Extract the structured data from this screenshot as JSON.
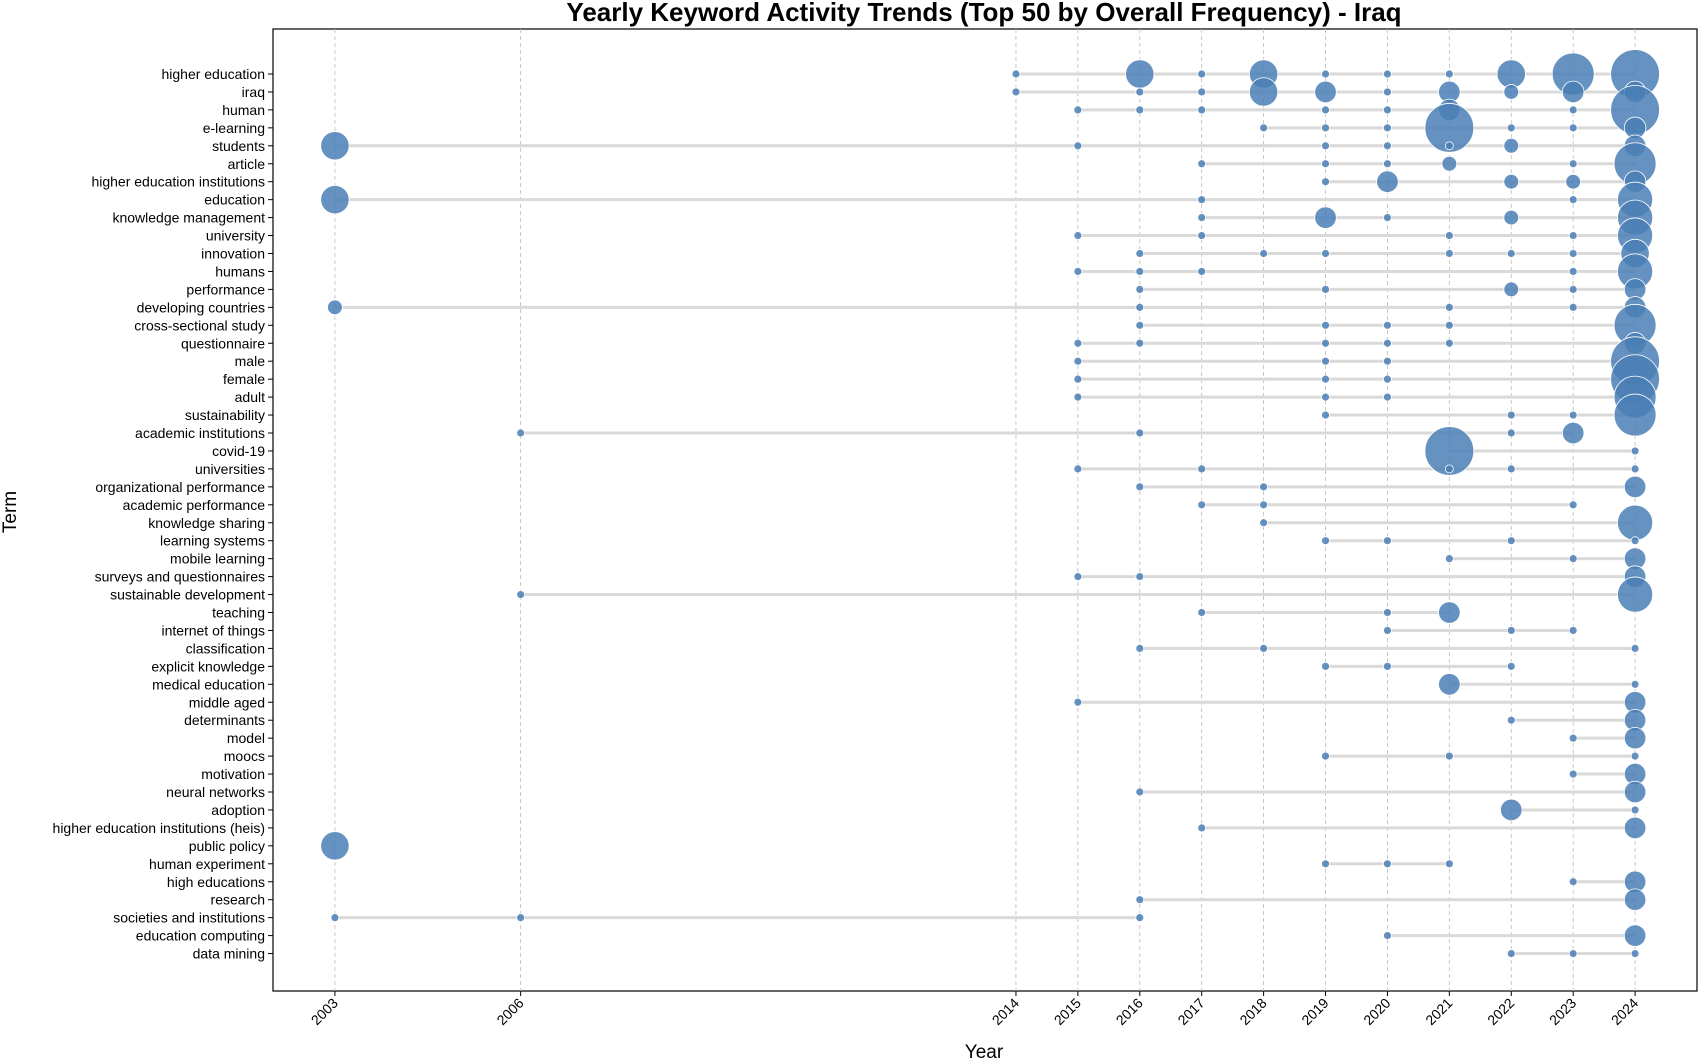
{
  "chart_data": {
    "type": "scatter",
    "title": "Yearly Keyword Activity Trends (Top 50 by Overall Frequency) - Iraq",
    "xlabel": "Year",
    "ylabel": "Term",
    "x_ticks": [
      2003,
      2006,
      2014,
      2015,
      2016,
      2017,
      2018,
      2019,
      2020,
      2021,
      2022,
      2023,
      2024
    ],
    "xlim": [
      2002,
      2025
    ],
    "grid": "vertical dashed",
    "colors": {
      "marker": "#4a7fb5",
      "line": "#d9d9d9",
      "grid": "#bbbbbb"
    },
    "terms": [
      {
        "term": "higher education",
        "points": [
          [
            2014,
            1
          ],
          [
            2016,
            4
          ],
          [
            2017,
            1
          ],
          [
            2018,
            4
          ],
          [
            2019,
            1
          ],
          [
            2020,
            1
          ],
          [
            2021,
            1
          ],
          [
            2022,
            4
          ],
          [
            2023,
            6
          ],
          [
            2024,
            7
          ]
        ]
      },
      {
        "term": "iraq",
        "points": [
          [
            2014,
            1
          ],
          [
            2016,
            1
          ],
          [
            2017,
            1
          ],
          [
            2018,
            4
          ],
          [
            2019,
            3
          ],
          [
            2020,
            1
          ],
          [
            2021,
            3
          ],
          [
            2022,
            2
          ],
          [
            2023,
            3
          ],
          [
            2024,
            3
          ]
        ]
      },
      {
        "term": "human",
        "points": [
          [
            2015,
            1
          ],
          [
            2016,
            1
          ],
          [
            2017,
            1
          ],
          [
            2019,
            1
          ],
          [
            2020,
            1
          ],
          [
            2021,
            3
          ],
          [
            2023,
            1
          ],
          [
            2024,
            7
          ]
        ]
      },
      {
        "term": "e-learning",
        "points": [
          [
            2018,
            1
          ],
          [
            2019,
            1
          ],
          [
            2020,
            1
          ],
          [
            2021,
            7
          ],
          [
            2022,
            1
          ],
          [
            2023,
            1
          ],
          [
            2024,
            3
          ]
        ]
      },
      {
        "term": "students",
        "points": [
          [
            2003,
            4
          ],
          [
            2015,
            1
          ],
          [
            2019,
            1
          ],
          [
            2020,
            1
          ],
          [
            2021,
            1
          ],
          [
            2022,
            2
          ],
          [
            2024,
            3
          ]
        ]
      },
      {
        "term": "article",
        "points": [
          [
            2017,
            1
          ],
          [
            2019,
            1
          ],
          [
            2020,
            1
          ],
          [
            2021,
            2
          ],
          [
            2023,
            1
          ],
          [
            2024,
            6
          ]
        ]
      },
      {
        "term": "higher education institutions",
        "points": [
          [
            2019,
            1
          ],
          [
            2020,
            3
          ],
          [
            2022,
            2
          ],
          [
            2023,
            2
          ],
          [
            2024,
            3
          ]
        ]
      },
      {
        "term": "education",
        "points": [
          [
            2003,
            4
          ],
          [
            2017,
            1
          ],
          [
            2023,
            1
          ],
          [
            2024,
            5
          ]
        ]
      },
      {
        "term": "knowledge management",
        "points": [
          [
            2017,
            1
          ],
          [
            2019,
            3
          ],
          [
            2020,
            1
          ],
          [
            2022,
            2
          ],
          [
            2024,
            5
          ]
        ]
      },
      {
        "term": "university",
        "points": [
          [
            2015,
            1
          ],
          [
            2017,
            1
          ],
          [
            2021,
            1
          ],
          [
            2023,
            1
          ],
          [
            2024,
            5
          ]
        ]
      },
      {
        "term": "innovation",
        "points": [
          [
            2016,
            1
          ],
          [
            2018,
            1
          ],
          [
            2019,
            1
          ],
          [
            2021,
            1
          ],
          [
            2022,
            1
          ],
          [
            2023,
            1
          ],
          [
            2024,
            4
          ]
        ]
      },
      {
        "term": "humans",
        "points": [
          [
            2015,
            1
          ],
          [
            2016,
            1
          ],
          [
            2017,
            1
          ],
          [
            2023,
            1
          ],
          [
            2024,
            5
          ]
        ]
      },
      {
        "term": "performance",
        "points": [
          [
            2016,
            1
          ],
          [
            2019,
            1
          ],
          [
            2022,
            2
          ],
          [
            2023,
            1
          ],
          [
            2024,
            3
          ]
        ]
      },
      {
        "term": "developing countries",
        "points": [
          [
            2003,
            2
          ],
          [
            2016,
            1
          ],
          [
            2021,
            1
          ],
          [
            2023,
            1
          ],
          [
            2024,
            3
          ]
        ]
      },
      {
        "term": "cross-sectional study",
        "points": [
          [
            2016,
            1
          ],
          [
            2019,
            1
          ],
          [
            2020,
            1
          ],
          [
            2021,
            1
          ],
          [
            2024,
            6
          ]
        ]
      },
      {
        "term": "questionnaire",
        "points": [
          [
            2015,
            1
          ],
          [
            2016,
            1
          ],
          [
            2019,
            1
          ],
          [
            2020,
            1
          ],
          [
            2021,
            1
          ],
          [
            2024,
            3
          ]
        ]
      },
      {
        "term": "male",
        "points": [
          [
            2015,
            1
          ],
          [
            2019,
            1
          ],
          [
            2020,
            1
          ],
          [
            2024,
            7
          ]
        ]
      },
      {
        "term": "female",
        "points": [
          [
            2015,
            1
          ],
          [
            2019,
            1
          ],
          [
            2020,
            1
          ],
          [
            2024,
            7
          ]
        ]
      },
      {
        "term": "adult",
        "points": [
          [
            2015,
            1
          ],
          [
            2019,
            1
          ],
          [
            2020,
            1
          ],
          [
            2024,
            6
          ]
        ]
      },
      {
        "term": "sustainability",
        "points": [
          [
            2019,
            1
          ],
          [
            2022,
            1
          ],
          [
            2023,
            1
          ],
          [
            2024,
            6
          ]
        ]
      },
      {
        "term": "academic institutions",
        "points": [
          [
            2006,
            1
          ],
          [
            2016,
            1
          ],
          [
            2022,
            1
          ],
          [
            2023,
            3
          ]
        ]
      },
      {
        "term": "covid-19",
        "points": [
          [
            2021,
            7
          ],
          [
            2024,
            1
          ]
        ]
      },
      {
        "term": "universities",
        "points": [
          [
            2015,
            1
          ],
          [
            2017,
            1
          ],
          [
            2021,
            1
          ],
          [
            2022,
            1
          ],
          [
            2024,
            1
          ]
        ]
      },
      {
        "term": "organizational performance",
        "points": [
          [
            2016,
            1
          ],
          [
            2018,
            1
          ],
          [
            2024,
            3
          ]
        ]
      },
      {
        "term": "academic performance",
        "points": [
          [
            2017,
            1
          ],
          [
            2018,
            1
          ],
          [
            2023,
            1
          ]
        ]
      },
      {
        "term": "knowledge sharing",
        "points": [
          [
            2018,
            1
          ],
          [
            2024,
            5
          ]
        ]
      },
      {
        "term": "learning systems",
        "points": [
          [
            2019,
            1
          ],
          [
            2020,
            1
          ],
          [
            2022,
            1
          ],
          [
            2024,
            1
          ]
        ]
      },
      {
        "term": "mobile learning",
        "points": [
          [
            2021,
            1
          ],
          [
            2023,
            1
          ],
          [
            2024,
            3
          ]
        ]
      },
      {
        "term": "surveys and questionnaires",
        "points": [
          [
            2015,
            1
          ],
          [
            2016,
            1
          ],
          [
            2024,
            3
          ]
        ]
      },
      {
        "term": "sustainable development",
        "points": [
          [
            2006,
            1
          ],
          [
            2024,
            5
          ]
        ]
      },
      {
        "term": "teaching",
        "points": [
          [
            2017,
            1
          ],
          [
            2020,
            1
          ],
          [
            2021,
            3
          ]
        ]
      },
      {
        "term": "internet of things",
        "points": [
          [
            2020,
            1
          ],
          [
            2022,
            1
          ],
          [
            2023,
            1
          ]
        ]
      },
      {
        "term": "classification",
        "points": [
          [
            2016,
            1
          ],
          [
            2018,
            1
          ],
          [
            2024,
            1
          ]
        ]
      },
      {
        "term": "explicit knowledge",
        "points": [
          [
            2019,
            1
          ],
          [
            2020,
            1
          ],
          [
            2022,
            1
          ]
        ]
      },
      {
        "term": "medical education",
        "points": [
          [
            2021,
            3
          ],
          [
            2024,
            1
          ]
        ]
      },
      {
        "term": "middle aged",
        "points": [
          [
            2015,
            1
          ],
          [
            2024,
            3
          ]
        ]
      },
      {
        "term": "determinants",
        "points": [
          [
            2022,
            1
          ],
          [
            2024,
            3
          ]
        ]
      },
      {
        "term": "model",
        "points": [
          [
            2023,
            1
          ],
          [
            2024,
            3
          ]
        ]
      },
      {
        "term": "moocs",
        "points": [
          [
            2019,
            1
          ],
          [
            2021,
            1
          ],
          [
            2024,
            1
          ]
        ]
      },
      {
        "term": "motivation",
        "points": [
          [
            2023,
            1
          ],
          [
            2024,
            3
          ]
        ]
      },
      {
        "term": "neural networks",
        "points": [
          [
            2016,
            1
          ],
          [
            2024,
            3
          ]
        ]
      },
      {
        "term": "adoption",
        "points": [
          [
            2022,
            3
          ],
          [
            2024,
            1
          ]
        ]
      },
      {
        "term": "higher education institutions (heis)",
        "points": [
          [
            2017,
            1
          ],
          [
            2024,
            3
          ]
        ]
      },
      {
        "term": "public policy",
        "points": [
          [
            2003,
            4
          ]
        ]
      },
      {
        "term": "human experiment",
        "points": [
          [
            2019,
            1
          ],
          [
            2020,
            1
          ],
          [
            2021,
            1
          ]
        ]
      },
      {
        "term": "high educations",
        "points": [
          [
            2023,
            1
          ],
          [
            2024,
            3
          ]
        ]
      },
      {
        "term": "research",
        "points": [
          [
            2016,
            1
          ],
          [
            2024,
            3
          ]
        ]
      },
      {
        "term": "societies and institutions",
        "points": [
          [
            2003,
            1
          ],
          [
            2006,
            1
          ],
          [
            2016,
            1
          ]
        ]
      },
      {
        "term": "education computing",
        "points": [
          [
            2020,
            1
          ],
          [
            2024,
            3
          ]
        ]
      },
      {
        "term": "data mining",
        "points": [
          [
            2022,
            1
          ],
          [
            2023,
            1
          ],
          [
            2024,
            1
          ]
        ]
      }
    ]
  }
}
